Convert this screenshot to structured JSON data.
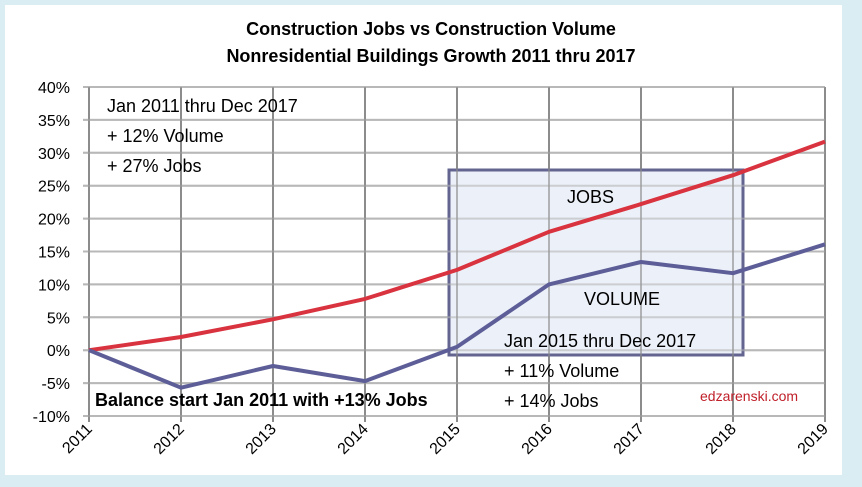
{
  "chart_data": {
    "type": "line",
    "title": "Construction Jobs vs Construction Volume",
    "subtitle": "Nonresidential Buildings Growth 2011 thru 2017",
    "xlabel": "",
    "ylabel": "",
    "categories": [
      "2011",
      "2012",
      "2013",
      "2014",
      "2015",
      "2016",
      "2017",
      "2018",
      "2019"
    ],
    "series": [
      {
        "name": "JOBS",
        "color": "#d9333f",
        "values": [
          0,
          2.0,
          4.7,
          7.8,
          12.2,
          18.0,
          22.2,
          26.6,
          31.7
        ]
      },
      {
        "name": "VOLUME",
        "color": "#5d5e98",
        "values": [
          0,
          -5.7,
          -2.4,
          -4.7,
          0.5,
          10.0,
          13.4,
          11.7,
          16.1
        ]
      }
    ],
    "ylim": [
      -10,
      40
    ],
    "yticks": [
      "40%",
      "35%",
      "30%",
      "25%",
      "20%",
      "15%",
      "10%",
      "5%",
      "0%",
      "-5%",
      "-10%"
    ],
    "grid": true,
    "legend": "none (inline labels)",
    "annotations": {
      "top_left": [
        "Jan 2011 thru Dec 2017",
        "+ 12% Volume",
        "+ 27% Jobs"
      ],
      "box_labels": {
        "jobs": "JOBS",
        "volume": "VOLUME"
      },
      "box_range": [
        "Jan 2015 thru Dec 2017",
        "+ 11% Volume",
        "+ 14% Jobs"
      ],
      "bottom_left": "Balance start Jan 2011 with +13% Jobs",
      "source": "edzarenski.com"
    }
  },
  "title": {
    "line1": "Construction Jobs vs Construction Volume",
    "line2": "Nonresidential Buildings Growth 2011 thru 2017"
  }
}
